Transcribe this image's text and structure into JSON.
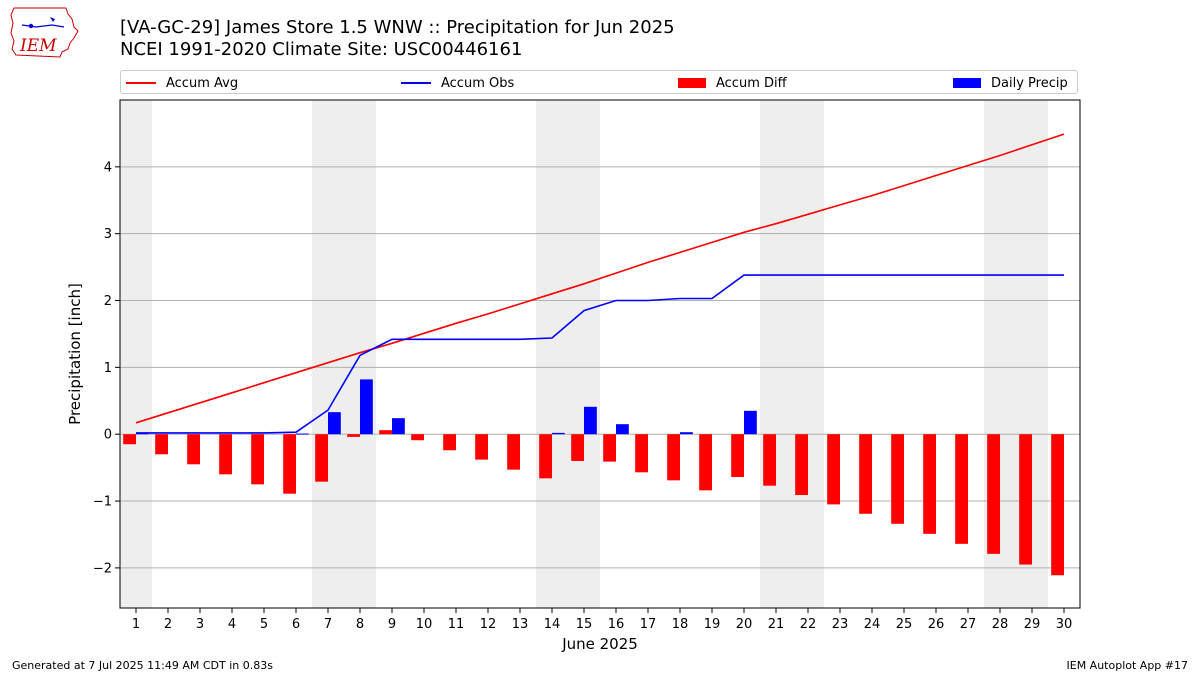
{
  "header": {
    "title_line1": "[VA-GC-29] James Store 1.5 WNW :: Precipitation for Jun 2025",
    "title_line2": "NCEI 1991-2020 Climate Site: USC00446161",
    "logo_text": "IEM"
  },
  "legend": {
    "position": "top",
    "items": [
      {
        "label": "Accum Avg",
        "kind": "line",
        "color": "#ff0000"
      },
      {
        "label": "Accum Obs",
        "kind": "line",
        "color": "#0000ff"
      },
      {
        "label": "Accum Diff",
        "kind": "bar",
        "color": "#ff0000"
      },
      {
        "label": "Daily Precip",
        "kind": "bar",
        "color": "#0000ff"
      }
    ]
  },
  "footer": {
    "left": "Generated at 7 Jul 2025 11:49 AM CDT in 0.83s",
    "right": "IEM Autoplot App #17"
  },
  "chart_data": {
    "type": "bar",
    "xlabel": "June 2025",
    "ylabel": "Precipitation [inch]",
    "ylim": [
      -2.6,
      5.0
    ],
    "yticks": [
      -2,
      -1,
      0,
      1,
      2,
      3,
      4
    ],
    "xlim": [
      0.5,
      30.5
    ],
    "grid": "horizontal",
    "colors": {
      "avg": "#ff0000",
      "obs": "#0000ff",
      "diff": "#ff0000",
      "daily": "#0000ff",
      "weekend": "#eeeeee",
      "grid": "#b0b0b0"
    },
    "x": [
      1,
      2,
      3,
      4,
      5,
      6,
      7,
      8,
      9,
      10,
      11,
      12,
      13,
      14,
      15,
      16,
      17,
      18,
      19,
      20,
      21,
      22,
      23,
      24,
      25,
      26,
      27,
      28,
      29,
      30
    ],
    "weekend_spans": [
      [
        0.5,
        1.5
      ],
      [
        6.5,
        8.5
      ],
      [
        13.5,
        15.5
      ],
      [
        20.5,
        22.5
      ],
      [
        27.5,
        29.5
      ]
    ],
    "series": [
      {
        "name": "Accum Avg",
        "kind": "line",
        "values": [
          0.17,
          0.32,
          0.47,
          0.62,
          0.77,
          0.92,
          1.07,
          1.22,
          1.36,
          1.51,
          1.66,
          1.8,
          1.95,
          2.1,
          2.25,
          2.41,
          2.57,
          2.72,
          2.87,
          3.02,
          3.15,
          3.29,
          3.43,
          3.57,
          3.72,
          3.87,
          4.02,
          4.17,
          4.33,
          4.49
        ]
      },
      {
        "name": "Accum Obs",
        "kind": "line",
        "values": [
          0.02,
          0.02,
          0.02,
          0.02,
          0.02,
          0.03,
          0.36,
          1.18,
          1.42,
          1.42,
          1.42,
          1.42,
          1.42,
          1.44,
          1.85,
          2.0,
          2.0,
          2.03,
          2.03,
          2.38,
          2.38,
          2.38,
          2.38,
          2.38,
          2.38,
          2.38,
          2.38,
          2.38,
          2.38,
          2.38
        ]
      },
      {
        "name": "Accum Diff",
        "kind": "bar",
        "values": [
          -0.15,
          -0.3,
          -0.45,
          -0.6,
          -0.75,
          -0.89,
          -0.71,
          -0.04,
          0.06,
          -0.09,
          -0.24,
          -0.38,
          -0.53,
          -0.66,
          -0.4,
          -0.41,
          -0.57,
          -0.69,
          -0.84,
          -0.64,
          -0.77,
          -0.91,
          -1.05,
          -1.19,
          -1.34,
          -1.49,
          -1.64,
          -1.79,
          -1.95,
          -2.11
        ]
      },
      {
        "name": "Daily Precip",
        "kind": "bar",
        "values": [
          0.02,
          0,
          0,
          0,
          0,
          0.01,
          0.33,
          0.82,
          0.24,
          0,
          0,
          0,
          0,
          0.02,
          0.41,
          0.15,
          0,
          0.03,
          0,
          0.35,
          0,
          0,
          0,
          0,
          0,
          0,
          0,
          0,
          0,
          0
        ]
      }
    ]
  }
}
